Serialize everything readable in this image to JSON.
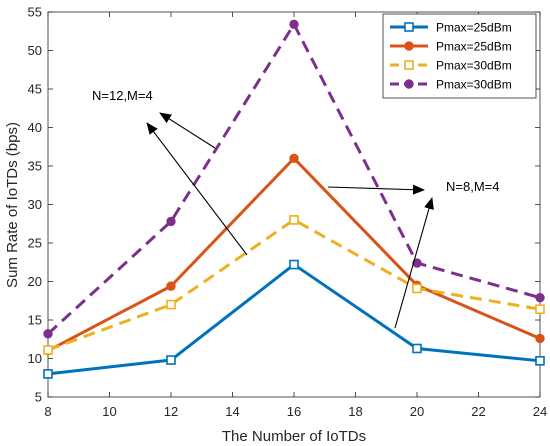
{
  "chart_data": {
    "type": "line",
    "xlabel": "The Number of IoTDs",
    "ylabel": "Sum Rate of IoTDs (bps)",
    "xlim": [
      8,
      24
    ],
    "ylim": [
      5,
      55
    ],
    "x_ticks": [
      8,
      10,
      12,
      14,
      16,
      18,
      20,
      22,
      24
    ],
    "y_ticks": [
      5,
      10,
      15,
      20,
      25,
      30,
      35,
      40,
      45,
      50,
      55
    ],
    "x": [
      8,
      12,
      16,
      20,
      24
    ],
    "grid": false,
    "legend_position": "top-right",
    "series": [
      {
        "name": "Pmax=25dBm",
        "values": [
          8.0,
          9.8,
          22.2,
          11.3,
          9.7
        ],
        "color": "#0072BD",
        "line": "solid",
        "marker": "square"
      },
      {
        "name": "Pmax=25dBm",
        "values": [
          11.0,
          19.4,
          36.0,
          19.5,
          12.6
        ],
        "color": "#D95319",
        "line": "solid",
        "marker": "circle"
      },
      {
        "name": "Pmax=30dBm",
        "values": [
          11.1,
          17.0,
          28.0,
          19.1,
          16.4
        ],
        "color": "#EDB120",
        "line": "dashed",
        "marker": "square"
      },
      {
        "name": "Pmax=30dBm",
        "values": [
          13.2,
          27.8,
          53.4,
          22.4,
          17.9
        ],
        "color": "#7E2F8E",
        "line": "dashed",
        "marker": "circle"
      }
    ],
    "annotations": [
      {
        "text": "N=12,M=4"
      },
      {
        "text": "N=8,M=4"
      }
    ]
  }
}
